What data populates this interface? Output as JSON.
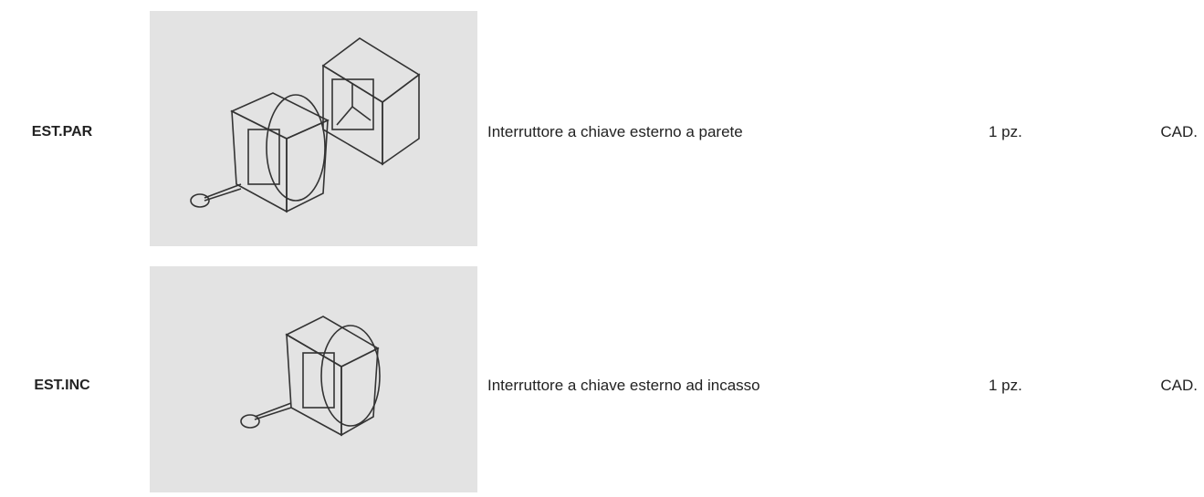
{
  "table": {
    "rows": [
      {
        "code": "EST.PAR",
        "description": "Interruttore a chiave esterno a parete",
        "quantity": "1 pz.",
        "unit": "CAD."
      },
      {
        "code": "EST.INC",
        "description": "Interruttore a chiave esterno ad incasso",
        "quantity": "1 pz.",
        "unit": "CAD."
      }
    ]
  }
}
